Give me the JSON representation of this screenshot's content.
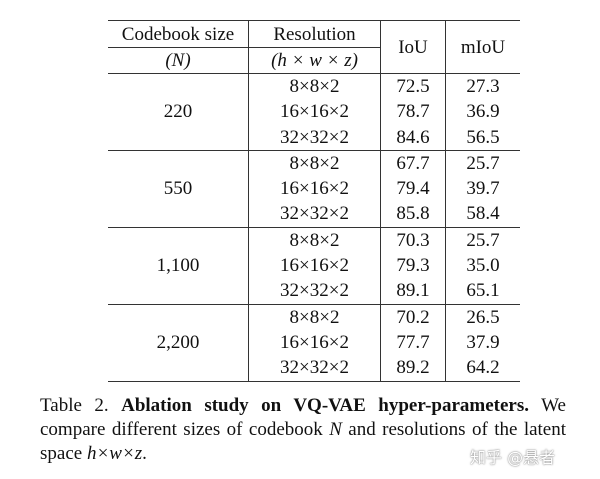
{
  "table": {
    "headers": {
      "codebook_line1": "Codebook size",
      "codebook_line2": "(N)",
      "resolution_line1": "Resolution",
      "resolution_line2": "(h × w × z)",
      "iou": "IoU",
      "miou": "mIoU"
    },
    "groups": [
      {
        "size": "220",
        "rows": [
          {
            "res": "8×8×2",
            "iou": "72.5",
            "miou": "27.3"
          },
          {
            "res": "16×16×2",
            "iou": "78.7",
            "miou": "36.9"
          },
          {
            "res": "32×32×2",
            "iou": "84.6",
            "miou": "56.5"
          }
        ]
      },
      {
        "size": "550",
        "rows": [
          {
            "res": "8×8×2",
            "iou": "67.7",
            "miou": "25.7"
          },
          {
            "res": "16×16×2",
            "iou": "79.4",
            "miou": "39.7"
          },
          {
            "res": "32×32×2",
            "iou": "85.8",
            "miou": "58.4"
          }
        ]
      },
      {
        "size": "1,100",
        "rows": [
          {
            "res": "8×8×2",
            "iou": "70.3",
            "miou": "25.7"
          },
          {
            "res": "16×16×2",
            "iou": "79.3",
            "miou": "35.0"
          },
          {
            "res": "32×32×2",
            "iou": "89.1",
            "miou": "65.1"
          }
        ]
      },
      {
        "size": "2,200",
        "rows": [
          {
            "res": "8×8×2",
            "iou": "70.2",
            "miou": "26.5"
          },
          {
            "res": "16×16×2",
            "iou": "77.7",
            "miou": "37.9"
          },
          {
            "res": "32×32×2",
            "iou": "89.2",
            "miou": "64.2"
          }
        ]
      }
    ]
  },
  "caption": {
    "label": "Table 2.",
    "bold": "Ablation study on VQ-VAE hyper-parameters.",
    "text_1": "We compare different sizes of codebook",
    "var_n": "N",
    "text_2": "and resolutions of the latent space",
    "var_hwz": "h×w×z",
    "text_end": "."
  },
  "watermark": "知乎 @悬者"
}
